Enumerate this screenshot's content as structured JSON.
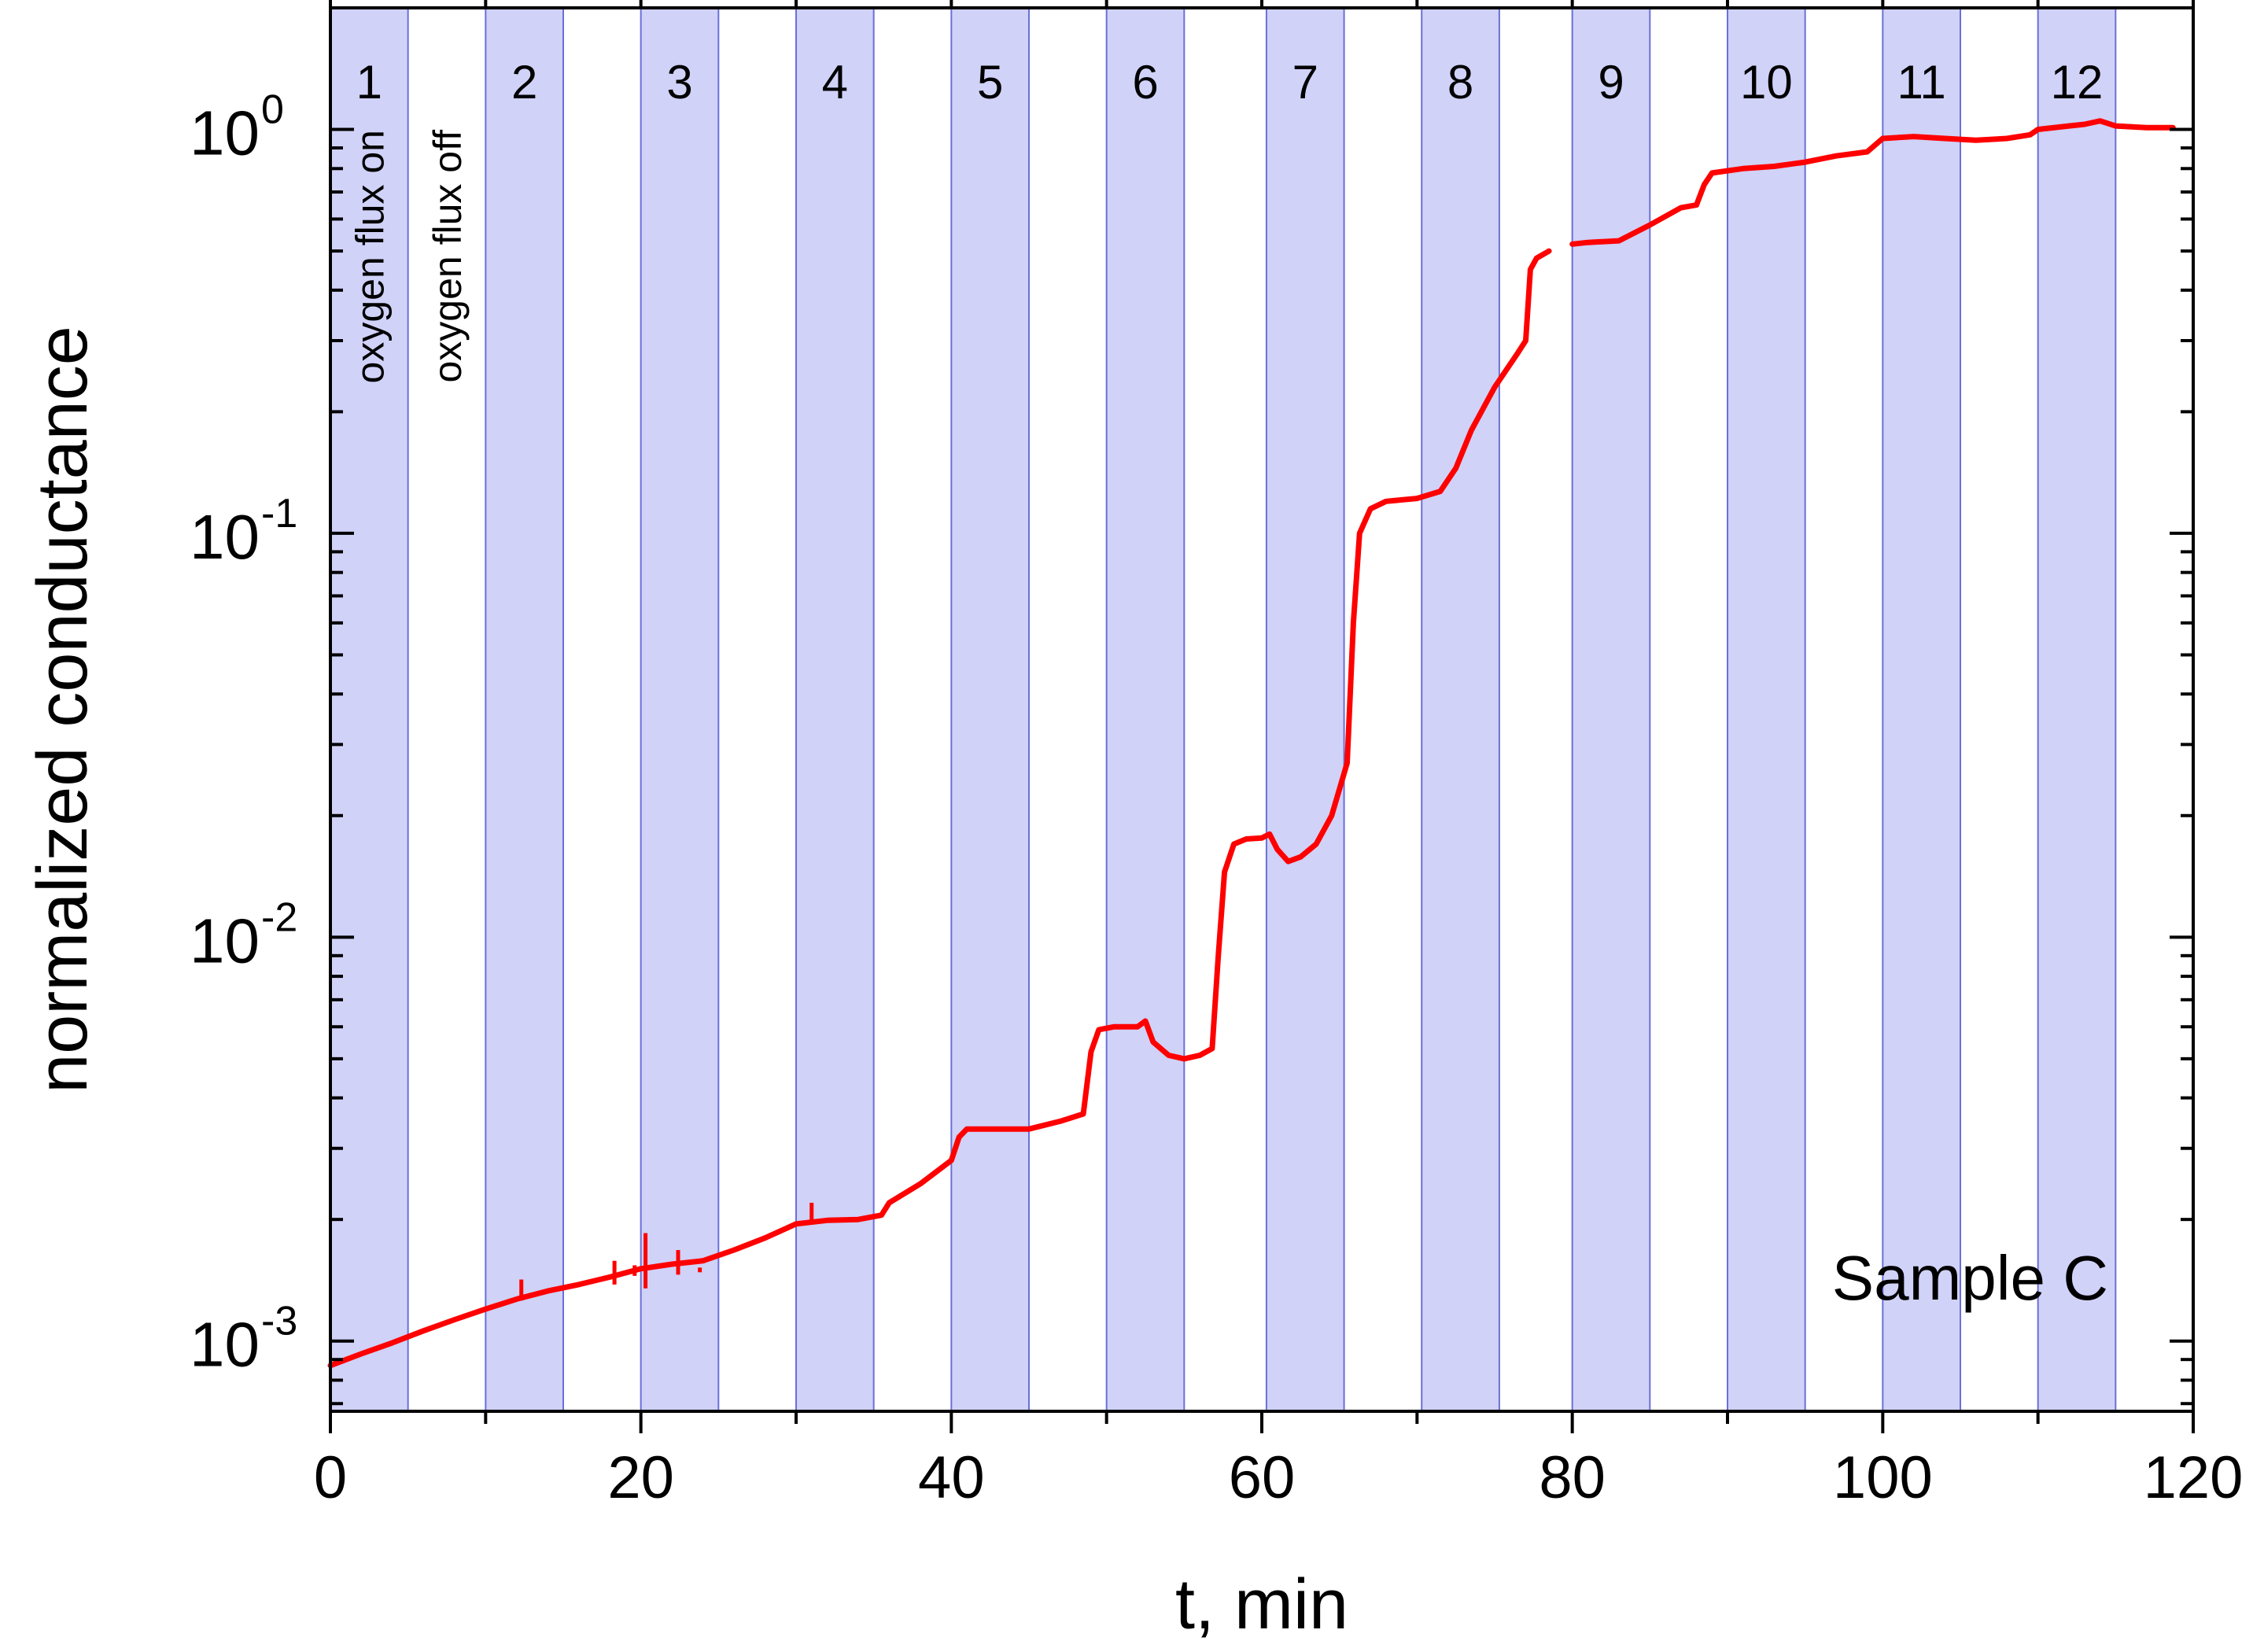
{
  "chart_data": {
    "type": "line",
    "xlabel": "t, min",
    "ylabel": "normalized conductance",
    "xlim": [
      0,
      120
    ],
    "ylim": [
      0.00067,
      2.0
    ],
    "yscale": "log",
    "x_ticks": [
      0,
      20,
      40,
      60,
      80,
      100,
      120
    ],
    "x_minor_step": 10,
    "y_ticks": [
      {
        "value": 0.001,
        "base": "10",
        "exp": "-3"
      },
      {
        "value": 0.01,
        "base": "10",
        "exp": "-2"
      },
      {
        "value": 0.1,
        "base": "10",
        "exp": "-1"
      },
      {
        "value": 1,
        "base": "10",
        "exp": "0"
      }
    ],
    "grid": false,
    "annotation": "Sample C",
    "phase_labels": [
      "oxygen flux on",
      "oxygen flux off"
    ],
    "band_color": "#d0d2f8",
    "band_edge_color": "#6a70d8",
    "line_color": "#ff0000",
    "shaded_intervals": [
      {
        "label": "1",
        "start": 0,
        "end": 5
      },
      {
        "label": "2",
        "start": 10,
        "end": 15
      },
      {
        "label": "3",
        "start": 20,
        "end": 25
      },
      {
        "label": "4",
        "start": 30,
        "end": 35
      },
      {
        "label": "5",
        "start": 40,
        "end": 45
      },
      {
        "label": "6",
        "start": 50,
        "end": 55
      },
      {
        "label": "7",
        "start": 60.3,
        "end": 65.3
      },
      {
        "label": "8",
        "start": 70.3,
        "end": 75.3
      },
      {
        "label": "9",
        "start": 80,
        "end": 85
      },
      {
        "label": "10",
        "start": 90,
        "end": 95
      },
      {
        "label": "11",
        "start": 100,
        "end": 105
      },
      {
        "label": "12",
        "start": 110,
        "end": 115
      }
    ],
    "series": [
      {
        "segments": [
          [
            [
              0,
              0.00087
            ],
            [
              2,
              0.00093
            ],
            [
              4,
              0.00099
            ],
            [
              6,
              0.00106
            ],
            [
              8,
              0.00113
            ],
            [
              10,
              0.0012
            ],
            [
              12,
              0.00127
            ],
            [
              14,
              0.00133
            ],
            [
              16,
              0.00138
            ],
            [
              18,
              0.00144
            ],
            [
              20,
              0.00151
            ],
            [
              22,
              0.00155
            ],
            [
              24,
              0.00158
            ],
            [
              26,
              0.00168
            ],
            [
              28,
              0.0018
            ],
            [
              30,
              0.00195
            ],
            [
              32,
              0.00199
            ],
            [
              34,
              0.002
            ],
            [
              35.5,
              0.00205
            ],
            [
              36,
              0.0022
            ],
            [
              38,
              0.00245
            ],
            [
              40,
              0.0028
            ],
            [
              40.5,
              0.0032
            ],
            [
              41,
              0.00335
            ],
            [
              43,
              0.00335
            ],
            [
              45,
              0.00335
            ],
            [
              47,
              0.0035
            ],
            [
              48.5,
              0.00365
            ],
            [
              49,
              0.0052
            ],
            [
              49.5,
              0.0059
            ],
            [
              50.5,
              0.006
            ],
            [
              52,
              0.006
            ],
            [
              52.5,
              0.0062
            ],
            [
              53,
              0.0055
            ],
            [
              54,
              0.0051
            ],
            [
              55,
              0.005
            ],
            [
              56,
              0.0051
            ],
            [
              56.8,
              0.0053
            ],
            [
              57.2,
              0.009
            ],
            [
              57.6,
              0.0145
            ],
            [
              58.2,
              0.017
            ],
            [
              59,
              0.0175
            ],
            [
              60,
              0.0176
            ],
            [
              60.5,
              0.018
            ],
            [
              61,
              0.0165
            ],
            [
              61.7,
              0.0154
            ],
            [
              62.5,
              0.0158
            ],
            [
              63.5,
              0.017
            ],
            [
              64.5,
              0.02
            ],
            [
              65.5,
              0.027
            ],
            [
              65.9,
              0.06
            ],
            [
              66.3,
              0.1
            ],
            [
              67,
              0.115
            ],
            [
              68,
              0.12
            ],
            [
              70,
              0.122
            ],
            [
              71.5,
              0.127
            ],
            [
              72.5,
              0.145
            ],
            [
              73.5,
              0.18
            ],
            [
              75,
              0.23
            ],
            [
              76.5,
              0.28
            ],
            [
              77,
              0.3
            ],
            [
              77.3,
              0.45
            ],
            [
              77.7,
              0.48
            ],
            [
              78.5,
              0.5
            ]
          ],
          [
            [
              80,
              0.52
            ],
            [
              81,
              0.525
            ],
            [
              83,
              0.53
            ],
            [
              85,
              0.58
            ],
            [
              87,
              0.64
            ],
            [
              88,
              0.65
            ],
            [
              88.5,
              0.73
            ],
            [
              89,
              0.78
            ],
            [
              91,
              0.8
            ],
            [
              93,
              0.81
            ],
            [
              95,
              0.83
            ],
            [
              97,
              0.86
            ],
            [
              99,
              0.88
            ],
            [
              100,
              0.95
            ],
            [
              102,
              0.96
            ],
            [
              104,
              0.95
            ],
            [
              106,
              0.94
            ],
            [
              108,
              0.95
            ],
            [
              109.5,
              0.97
            ],
            [
              110,
              1.0
            ],
            [
              112,
              1.02
            ],
            [
              113,
              1.03
            ],
            [
              114,
              1.05
            ],
            [
              115,
              1.02
            ],
            [
              117,
              1.01
            ],
            [
              118.7,
              1.01
            ]
          ]
        ],
        "spikes": [
          [
            12.3,
            0.00126,
            0.00142
          ],
          [
            18.3,
            0.00138,
            0.00158
          ],
          [
            19.6,
            0.00145,
            0.00154
          ],
          [
            20.3,
            0.00135,
            0.00185
          ],
          [
            22.4,
            0.00146,
            0.00168
          ],
          [
            23.8,
            0.00148,
            0.00152
          ],
          [
            31,
            0.00195,
            0.0022
          ]
        ]
      }
    ]
  }
}
